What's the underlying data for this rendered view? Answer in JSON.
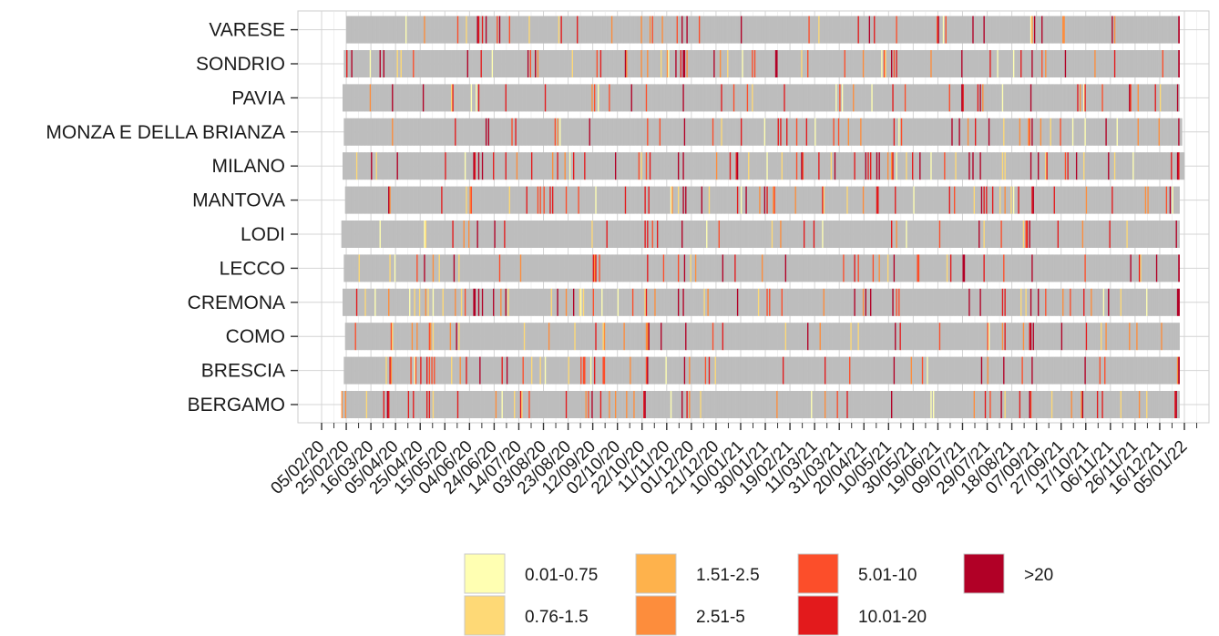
{
  "chart_data": {
    "type": "heatmap",
    "title": "",
    "xlabel": "",
    "ylabel": "",
    "provinces": [
      "BERGAMO",
      "BRESCIA",
      "COMO",
      "CREMONA",
      "LECCO",
      "LODI",
      "MANTOVA",
      "MILANO",
      "MONZA E DELLA BRIANZA",
      "PAVIA",
      "SONDRIO",
      "VARESE"
    ],
    "x_start_date": "05/02/20",
    "x_end_date": "05/01/22",
    "x_ticks": [
      "05/02/20",
      "25/02/20",
      "16/03/20",
      "05/04/20",
      "25/04/20",
      "15/05/20",
      "04/06/20",
      "24/06/20",
      "14/07/20",
      "03/08/20",
      "23/08/20",
      "12/09/20",
      "02/10/20",
      "22/10/20",
      "11/11/20",
      "01/12/20",
      "21/12/20",
      "10/01/21",
      "30/01/21",
      "19/02/21",
      "11/03/21",
      "31/03/21",
      "20/04/21",
      "10/05/21",
      "30/05/21",
      "19/06/21",
      "09/07/21",
      "29/07/21",
      "18/08/21",
      "07/09/21",
      "27/09/21",
      "17/10/21",
      "06/11/21",
      "26/11/21",
      "16/12/21",
      "05/01/22"
    ],
    "missing_color": "#bdbdbd",
    "grid": true,
    "legend_position": "bottom",
    "legend": [
      {
        "label": "0.01-0.75",
        "color": "#ffffb2"
      },
      {
        "label": "0.76-1.5",
        "color": "#fed976"
      },
      {
        "label": "1.51-2.5",
        "color": "#feb24c"
      },
      {
        "label": "2.51-5",
        "color": "#fd8d3c"
      },
      {
        "label": "5.01-10",
        "color": "#fc4e2a"
      },
      {
        "label": "10.01-20",
        "color": "#e31a1c"
      },
      {
        "label": ">20",
        "color": "#b10026"
      }
    ],
    "series": [
      {
        "name": "BERGAMO",
        "start": "21/02/20",
        "end": "31/12/21"
      },
      {
        "name": "BRESCIA",
        "start": "23/02/20",
        "end": "31/12/21"
      },
      {
        "name": "COMO",
        "start": "24/02/20",
        "end": "31/12/21"
      },
      {
        "name": "CREMONA",
        "start": "22/02/20",
        "end": "31/12/21"
      },
      {
        "name": "LECCO",
        "start": "23/02/20",
        "end": "31/12/21"
      },
      {
        "name": "LODI",
        "start": "21/02/20",
        "end": "31/12/21"
      },
      {
        "name": "MANTOVA",
        "start": "24/02/20",
        "end": "31/12/21"
      },
      {
        "name": "MILANO",
        "start": "22/02/20",
        "end": "04/01/22"
      },
      {
        "name": "MONZA E DELLA BRIANZA",
        "start": "23/02/20",
        "end": "02/01/22"
      },
      {
        "name": "PAVIA",
        "start": "22/02/20",
        "end": "31/12/21"
      },
      {
        "name": "SONDRIO",
        "start": "23/02/20",
        "end": "31/12/21"
      },
      {
        "name": "VARESE",
        "start": "25/02/20",
        "end": "31/12/21"
      }
    ]
  }
}
